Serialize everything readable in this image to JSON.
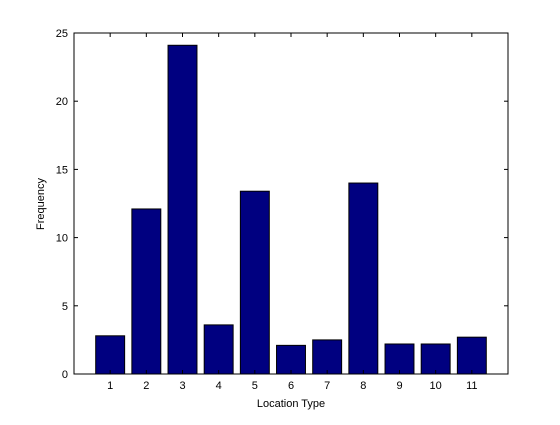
{
  "chart_data": {
    "type": "bar",
    "title": "",
    "xlabel": "Location Type",
    "ylabel": "Frequency",
    "categories": [
      "1",
      "2",
      "3",
      "4",
      "5",
      "6",
      "7",
      "8",
      "9",
      "10",
      "11"
    ],
    "values": [
      2.8,
      12.1,
      24.1,
      3.6,
      13.4,
      2.1,
      2.5,
      14.0,
      2.2,
      2.2,
      2.7
    ],
    "ylim": [
      0,
      25
    ],
    "xlim": [
      0,
      12
    ],
    "yticks": [
      0,
      5,
      10,
      15,
      20,
      25
    ],
    "grid": false,
    "bar_color": "#000080",
    "bar_edge_color": "#000000"
  }
}
